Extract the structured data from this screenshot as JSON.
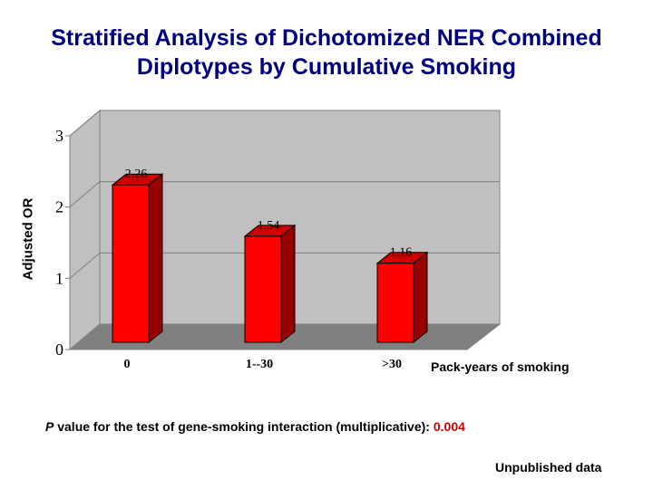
{
  "chart_data": {
    "type": "bar",
    "title": "Stratified Analysis of Dichotomized NER Combined Diplotypes by Cumulative Smoking",
    "xlabel": "Pack-years of smoking",
    "ylabel": "Adjusted OR",
    "categories": [
      "0",
      "1--30",
      ">30"
    ],
    "values": [
      2.26,
      1.54,
      1.16
    ],
    "data_labels": [
      "2.26",
      "1.54",
      "1.16"
    ],
    "yticks": [
      "0",
      "1",
      "2",
      "3"
    ],
    "ylim": [
      0,
      3
    ],
    "grid": true,
    "style": "3d-bar",
    "colors": {
      "bar": "#ff0000",
      "bar_side": "#990000",
      "bar_top": "#cc0000",
      "wall": "#c0c0c0",
      "floor": "#808080"
    }
  },
  "note": {
    "p_label": "P",
    "text": " value for the test of gene-smoking interaction (multiplicative): ",
    "p_value": "0.004"
  },
  "footer": "Unpublished data"
}
